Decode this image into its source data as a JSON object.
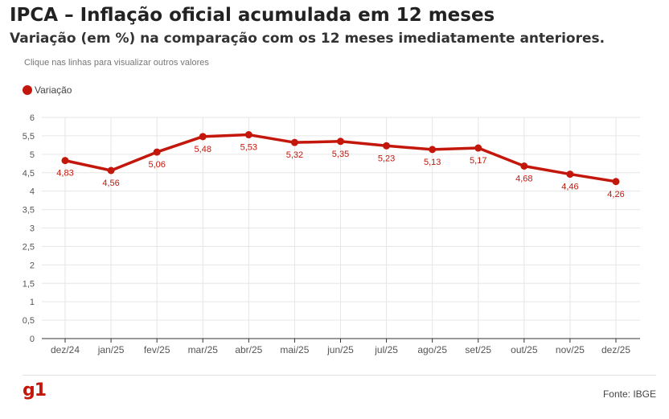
{
  "header": {
    "title": "IPCA – Inflação oficial acumulada em 12 meses",
    "subtitle": "Variação (em %) na comparação com os 12 meses imediatamente anteriores.",
    "hint": "Clique nas linhas para visualizar outros valores"
  },
  "footer": {
    "logo": "g1",
    "source": "Fonte: IBGE"
  },
  "colors": {
    "series": "#c4170c",
    "logo": "#c4170c",
    "grid": "#e6e6e6",
    "axis": "#333333"
  },
  "chart_data": {
    "type": "line",
    "title": "IPCA – Inflação oficial acumulada em 12 meses",
    "subtitle": "Variação (em %) na comparação com os 12 meses imediatamente anteriores.",
    "categories": [
      "dez/24",
      "jan/25",
      "fev/25",
      "mar/25",
      "abr/25",
      "mai/25",
      "jun/25",
      "jul/25",
      "ago/25",
      "set/25",
      "out/25",
      "nov/25",
      "dez/25"
    ],
    "series": [
      {
        "name": "Variação",
        "values": [
          4.83,
          4.56,
          5.06,
          5.48,
          5.53,
          5.32,
          5.35,
          5.23,
          5.13,
          5.17,
          4.68,
          4.46,
          4.26
        ],
        "labels": [
          "4,83",
          "4,56",
          "5,06",
          "5,48",
          "5,53",
          "5,32",
          "5,35",
          "5,23",
          "5,13",
          "5,17",
          "4,68",
          "4,46",
          "4,26"
        ]
      }
    ],
    "ylim": [
      0,
      6
    ],
    "yticks": [
      0,
      0.5,
      1,
      1.5,
      2,
      2.5,
      3,
      3.5,
      4,
      4.5,
      5,
      5.5,
      6
    ],
    "ytick_labels": [
      "0",
      "0,5",
      "1",
      "1,5",
      "2",
      "2,5",
      "3",
      "3,5",
      "4",
      "4,5",
      "5",
      "5,5",
      "6"
    ],
    "grid": true,
    "legend": "top-left"
  }
}
